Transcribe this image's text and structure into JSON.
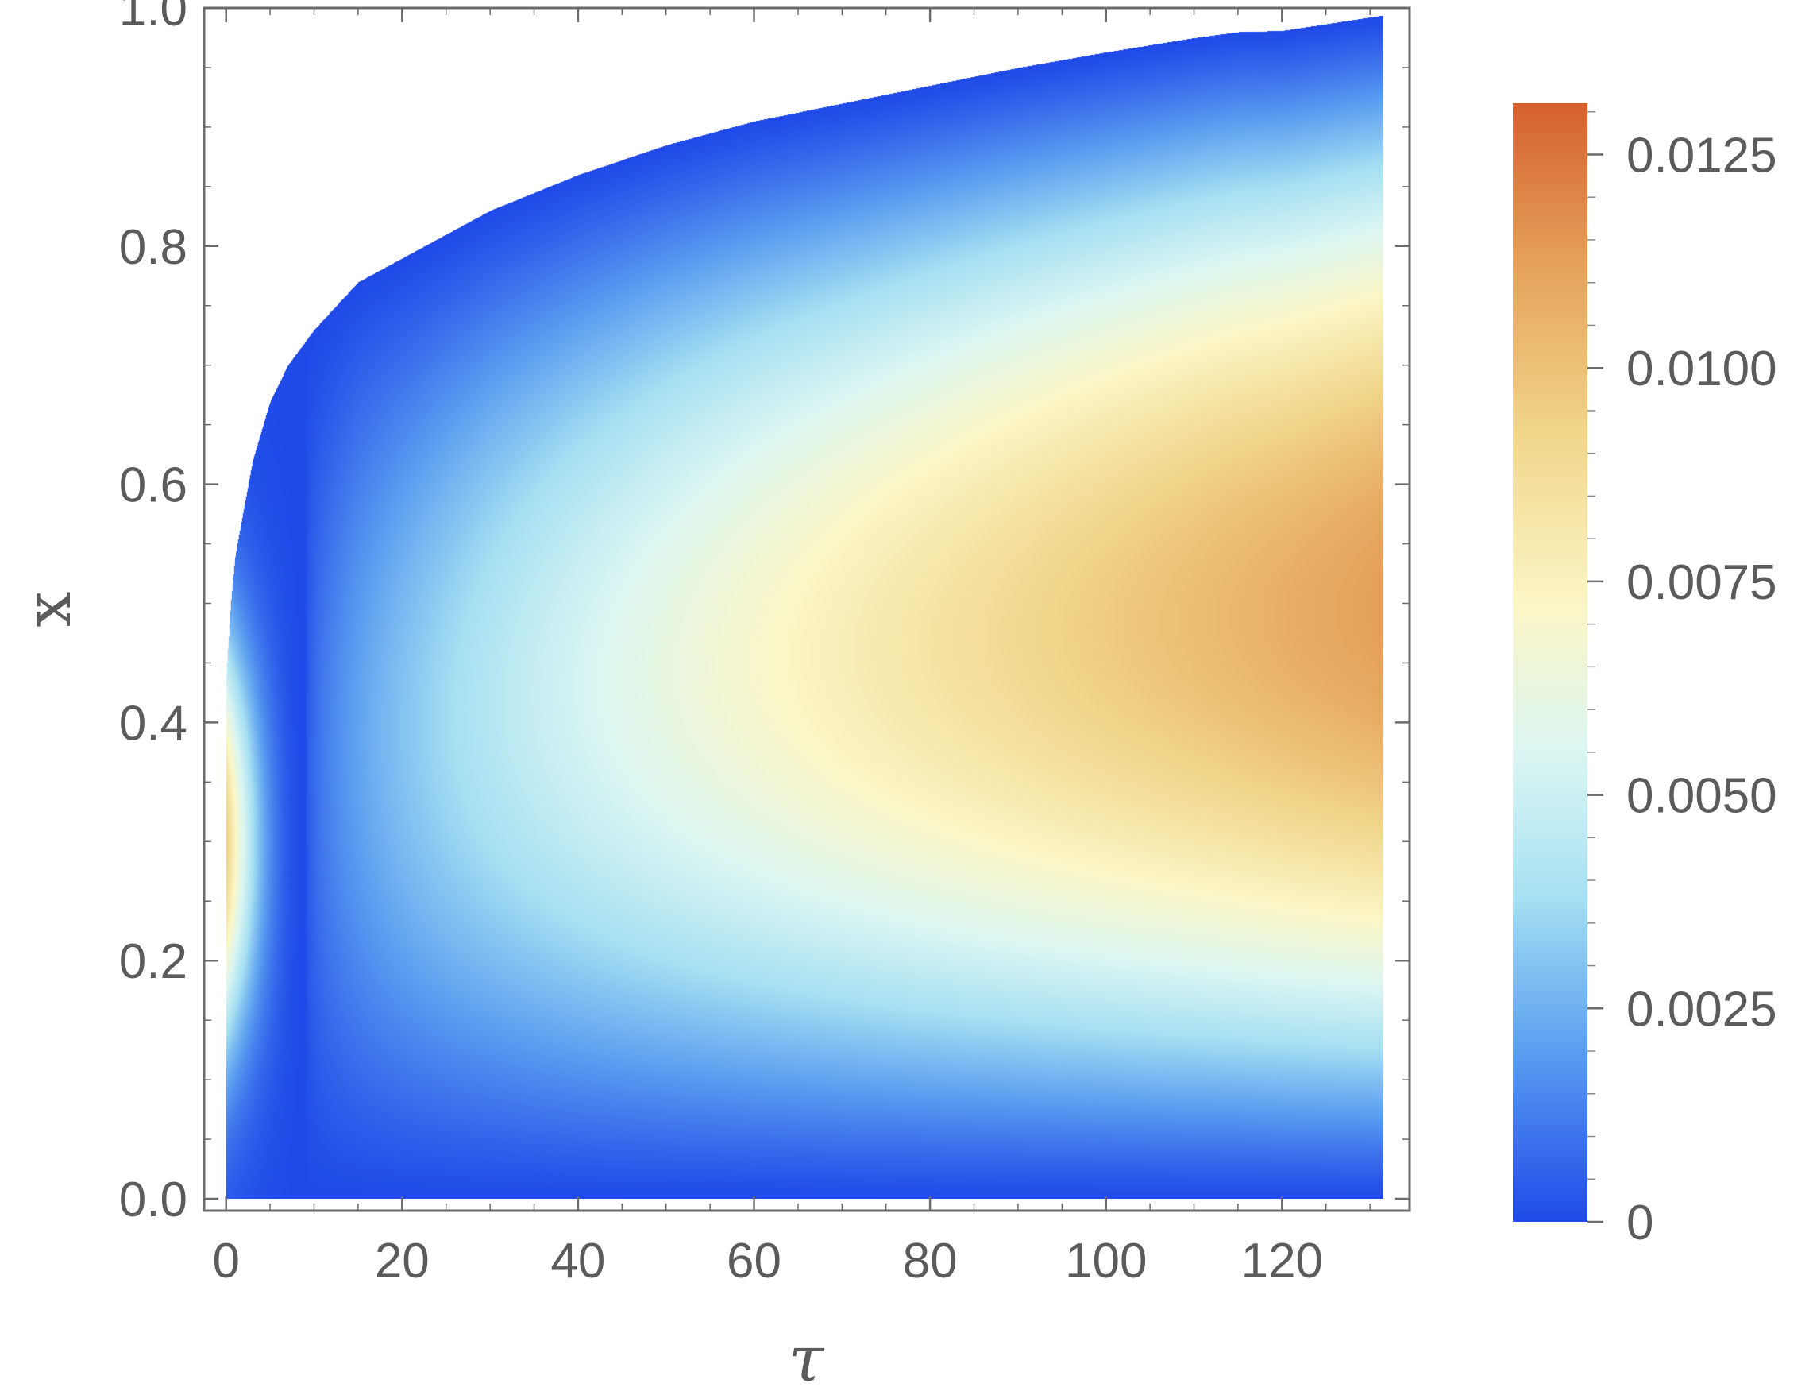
{
  "chart_data": {
    "type": "heatmap",
    "title": "",
    "xlabel": "τ",
    "ylabel": "x",
    "xlim": [
      -2.5,
      134.5
    ],
    "ylim": [
      -0.01,
      1.0
    ],
    "x_ticks": [
      0,
      20,
      40,
      60,
      80,
      100,
      120
    ],
    "x_tick_labels": [
      "0",
      "20",
      "40",
      "60",
      "80",
      "100",
      "120"
    ],
    "y_ticks": [
      0.0,
      0.2,
      0.4,
      0.6,
      0.8,
      1.0
    ],
    "y_tick_labels": [
      "0.0",
      "0.2",
      "0.4",
      "0.6",
      "0.8",
      "1.0"
    ],
    "domain_x_range": [
      0,
      131.5
    ],
    "domain_upper_boundary": [
      {
        "x": 0,
        "y": 0.44
      },
      {
        "x": 0.5,
        "y": 0.5
      },
      {
        "x": 1,
        "y": 0.54
      },
      {
        "x": 2,
        "y": 0.58
      },
      {
        "x": 3,
        "y": 0.62
      },
      {
        "x": 5,
        "y": 0.67
      },
      {
        "x": 7,
        "y": 0.7
      },
      {
        "x": 10,
        "y": 0.73
      },
      {
        "x": 15,
        "y": 0.77
      },
      {
        "x": 20,
        "y": 0.79
      },
      {
        "x": 30,
        "y": 0.83
      },
      {
        "x": 40,
        "y": 0.86
      },
      {
        "x": 50,
        "y": 0.885
      },
      {
        "x": 60,
        "y": 0.905
      },
      {
        "x": 70,
        "y": 0.92
      },
      {
        "x": 80,
        "y": 0.935
      },
      {
        "x": 90,
        "y": 0.95
      },
      {
        "x": 100,
        "y": 0.963
      },
      {
        "x": 110,
        "y": 0.975
      },
      {
        "x": 115,
        "y": 0.98
      },
      {
        "x": 120,
        "y": 0.981
      },
      {
        "x": 131.5,
        "y": 0.994
      }
    ],
    "value_features": {
      "max_region": {
        "x": 131.5,
        "y": 0.55,
        "value": 0.0113
      },
      "min_region_bottom": {
        "y": 0.0,
        "value": 0.0
      },
      "min_band_near": {
        "x": 9,
        "value": 0.0
      },
      "secondary_peak": {
        "x": 0.5,
        "y": 0.3,
        "value": 0.0095
      }
    },
    "colorbar": {
      "min": 0,
      "max": 0.0131,
      "ticks": [
        0,
        0.0025,
        0.005,
        0.0075,
        0.01,
        0.0125
      ],
      "tick_labels": [
        "0",
        "0.0025",
        "0.0050",
        "0.0075",
        "0.0100",
        "0.0125"
      ],
      "colors": [
        {
          "v": 0.0,
          "color": "#1f4ae8"
        },
        {
          "v": 0.002,
          "color": "#5a9ef0"
        },
        {
          "v": 0.0038,
          "color": "#a6e0f2"
        },
        {
          "v": 0.0055,
          "color": "#dbf6f2"
        },
        {
          "v": 0.0072,
          "color": "#fbf6c6"
        },
        {
          "v": 0.0092,
          "color": "#f1d68c"
        },
        {
          "v": 0.0112,
          "color": "#e5a25a"
        },
        {
          "v": 0.0131,
          "color": "#d4602e"
        }
      ]
    }
  }
}
